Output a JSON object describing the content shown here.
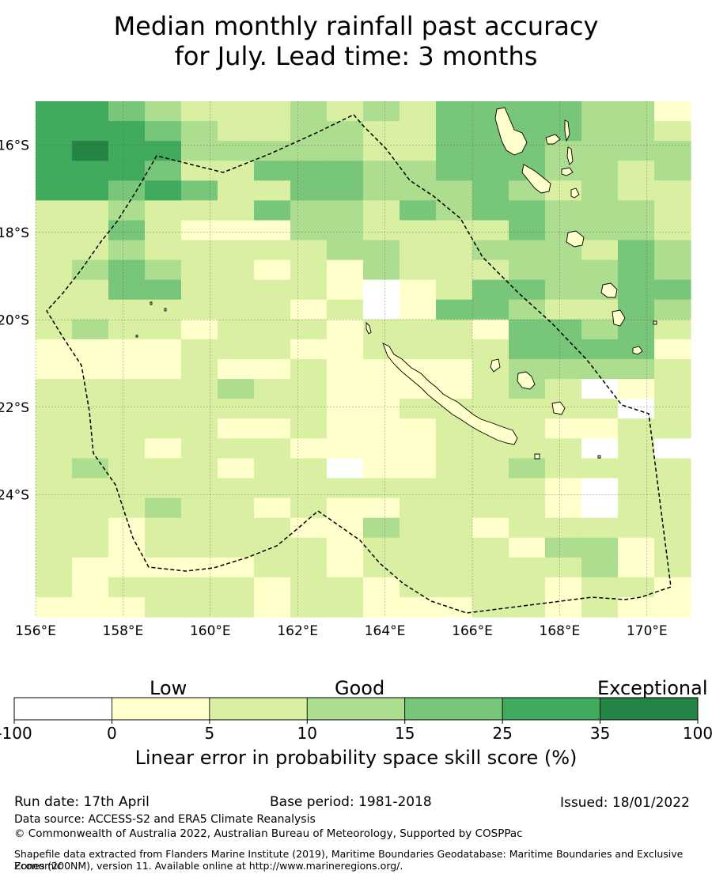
{
  "title": {
    "line1": "Median monthly rainfall past accuracy",
    "line2": "for July. Lead time: 3 months"
  },
  "map": {
    "lon_range": [
      156,
      171
    ],
    "lat_range": [
      -15,
      -26.8
    ],
    "lon_ticks": [
      "156°E",
      "158°E",
      "160°E",
      "162°E",
      "164°E",
      "166°E",
      "168°E",
      "170°E"
    ],
    "lat_ticks": [
      "16°S",
      "18°S",
      "20°S",
      "22°S",
      "24°S"
    ],
    "grid": true,
    "eez_boundary": "dashed black line",
    "landmasses": [
      "New Caledonia",
      "Loyalty Islands",
      "Vanuatu"
    ],
    "skill_grid": [
      [
        4,
        4,
        3,
        2,
        1,
        1,
        1,
        2,
        1,
        2,
        1,
        3,
        3,
        3,
        3,
        2,
        2,
        0
      ],
      [
        4,
        4,
        4,
        3,
        2,
        1,
        1,
        2,
        2,
        1,
        1,
        3,
        3,
        3,
        3,
        2,
        2,
        1
      ],
      [
        4,
        5,
        4,
        4,
        2,
        2,
        2,
        2,
        2,
        1,
        1,
        3,
        3,
        3,
        2,
        2,
        2,
        2
      ],
      [
        4,
        4,
        4,
        3,
        1,
        1,
        3,
        3,
        3,
        2,
        2,
        3,
        3,
        3,
        2,
        2,
        1,
        2
      ],
      [
        4,
        4,
        3,
        4,
        3,
        1,
        1,
        3,
        3,
        2,
        2,
        2,
        3,
        2,
        1,
        2,
        1,
        1
      ],
      [
        1,
        1,
        2,
        1,
        1,
        1,
        3,
        2,
        2,
        1,
        3,
        2,
        3,
        3,
        2,
        2,
        2,
        1
      ],
      [
        1,
        1,
        3,
        1,
        0,
        0,
        0,
        2,
        2,
        1,
        1,
        1,
        1,
        3,
        2,
        2,
        2,
        1
      ],
      [
        1,
        1,
        2,
        1,
        1,
        1,
        1,
        1,
        2,
        2,
        1,
        1,
        2,
        2,
        2,
        1,
        3,
        2
      ],
      [
        1,
        2,
        3,
        2,
        1,
        1,
        0,
        1,
        0,
        2,
        1,
        1,
        1,
        2,
        2,
        2,
        3,
        2
      ],
      [
        1,
        1,
        3,
        3,
        1,
        1,
        1,
        1,
        0,
        -1,
        0,
        1,
        3,
        3,
        2,
        2,
        3,
        3
      ],
      [
        1,
        1,
        1,
        1,
        1,
        1,
        1,
        0,
        1,
        -1,
        0,
        3,
        3,
        2,
        1,
        1,
        3,
        2
      ],
      [
        1,
        2,
        1,
        1,
        0,
        1,
        1,
        1,
        0,
        1,
        1,
        1,
        0,
        3,
        3,
        2,
        3,
        1
      ],
      [
        0,
        0,
        0,
        0,
        1,
        1,
        1,
        0,
        0,
        1,
        1,
        1,
        1,
        3,
        3,
        3,
        3,
        0
      ],
      [
        0,
        0,
        0,
        0,
        1,
        0,
        0,
        1,
        0,
        0,
        0,
        0,
        1,
        2,
        2,
        2,
        2,
        1
      ],
      [
        1,
        1,
        1,
        1,
        1,
        2,
        1,
        1,
        0,
        0,
        0,
        0,
        1,
        2,
        1,
        -1,
        0,
        1
      ],
      [
        1,
        1,
        1,
        1,
        1,
        1,
        1,
        1,
        0,
        0,
        1,
        1,
        1,
        1,
        1,
        1,
        -1,
        1
      ],
      [
        1,
        1,
        1,
        1,
        1,
        0,
        0,
        1,
        0,
        0,
        0,
        1,
        1,
        1,
        0,
        0,
        1,
        1
      ],
      [
        1,
        1,
        1,
        0,
        1,
        1,
        1,
        0,
        0,
        0,
        0,
        1,
        1,
        1,
        1,
        -1,
        1,
        -1
      ],
      [
        1,
        2,
        1,
        1,
        1,
        0,
        1,
        1,
        -1,
        0,
        0,
        1,
        1,
        2,
        1,
        1,
        1,
        1
      ],
      [
        1,
        1,
        1,
        1,
        1,
        1,
        1,
        1,
        1,
        1,
        1,
        1,
        1,
        1,
        0,
        -1,
        1,
        1
      ],
      [
        1,
        1,
        1,
        2,
        1,
        1,
        0,
        1,
        0,
        0,
        1,
        1,
        1,
        1,
        0,
        -1,
        1,
        1
      ],
      [
        1,
        1,
        0,
        1,
        1,
        1,
        1,
        0,
        0,
        2,
        1,
        1,
        0,
        1,
        1,
        1,
        1,
        1
      ],
      [
        1,
        1,
        0,
        1,
        1,
        1,
        1,
        1,
        0,
        1,
        1,
        1,
        1,
        0,
        2,
        2,
        0,
        1
      ],
      [
        1,
        0,
        0,
        0,
        0,
        0,
        1,
        1,
        0,
        1,
        1,
        1,
        1,
        1,
        1,
        2,
        0,
        1
      ],
      [
        1,
        0,
        1,
        1,
        1,
        1,
        0,
        1,
        1,
        0,
        1,
        1,
        1,
        1,
        0,
        1,
        1,
        0
      ],
      [
        0,
        0,
        0,
        1,
        1,
        1,
        0,
        1,
        1,
        0,
        0,
        0,
        1,
        1,
        0,
        1,
        0,
        0
      ]
    ]
  },
  "legend": {
    "categories": [
      "Low",
      "Good",
      "Exceptional"
    ],
    "bin_colors": [
      "#ffffff",
      "#ffffcc",
      "#d9f0a3",
      "#addd8e",
      "#78c679",
      "#41ab5d",
      "#238443"
    ],
    "tick_labels": [
      "-100",
      "0",
      "5",
      "10",
      "15",
      "25",
      "35",
      "100"
    ],
    "title": "Linear error in probability space skill score (%)"
  },
  "footer": {
    "run_date": "Run date: 17th April",
    "base_period": "Base period: 1981-2018",
    "issued": "Issued: 18/01/2022",
    "data_source": "Data source: ACCESS-S2 and ERA5 Climate Reanalysis",
    "copyright": "© Commonwealth of Australia 2022, Australian Bureau of Meteorology, Supported by COSPPac",
    "shapefile_line1": "Shapefile data extracted from Flanders Marine Institute (2019), Maritime Boundaries Geodatabase: Maritime Boundaries and Exclusive Economic",
    "shapefile_line2": "Zones (200NM), version 11. Available online at http://www.marineregions.org/."
  }
}
